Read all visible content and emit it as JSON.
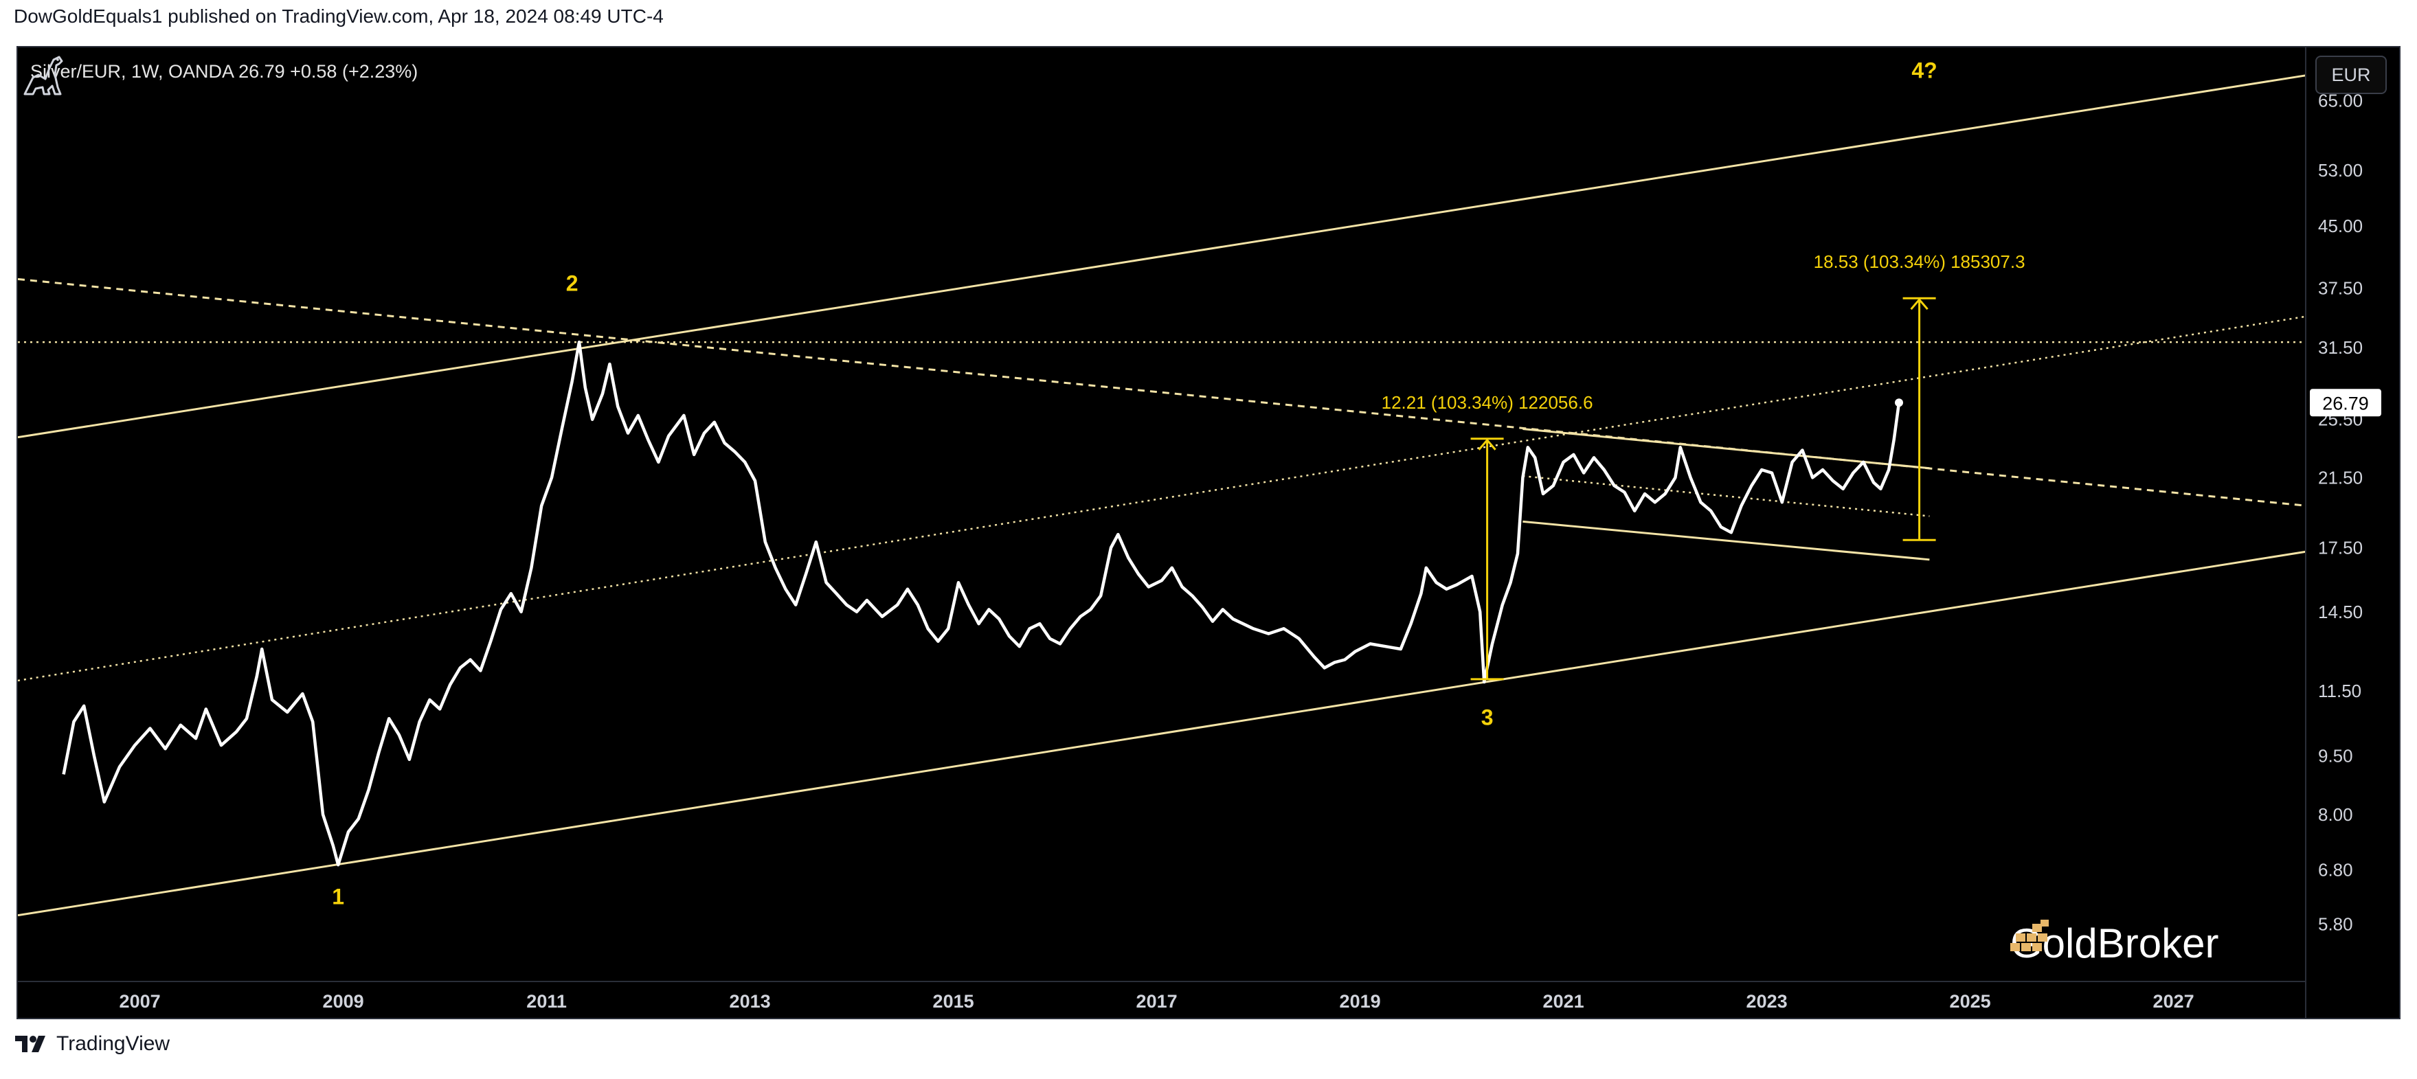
{
  "header": {
    "publisher_line": "DowGoldEquals1 published on TradingView.com, Apr 18, 2024 08:49 UTC-4"
  },
  "symbol": {
    "info": "Silver/EUR, 1W, OANDA  26.79  +0.58 (+2.23%)"
  },
  "currency_button": {
    "label": "EUR"
  },
  "brand": {
    "name": "GoldBroker"
  },
  "footer": {
    "label": "TradingView"
  },
  "colors": {
    "background": "#000000",
    "price_line": "#ffffff",
    "channel_line": "#f3e3a6",
    "annotation_yellow": "#f5d20a",
    "axis_text": "#d1d4dc"
  },
  "icons": [
    "dinosaur-icon",
    "goldbroker-logo-icon",
    "tradingview-logo-icon"
  ],
  "chart_data": {
    "type": "line",
    "title": "",
    "xlabel": "",
    "ylabel": "",
    "y_scale": "log",
    "ylim": [
      4.9,
      76
    ],
    "xlim": [
      2005.8,
      2028.3
    ],
    "grid": false,
    "last_price": 26.79,
    "last_price_label": "26.79",
    "y_ticks": [
      {
        "value": 65.0,
        "label": "65.00"
      },
      {
        "value": 53.0,
        "label": "53.00"
      },
      {
        "value": 45.0,
        "label": "45.00"
      },
      {
        "value": 37.5,
        "label": "37.50"
      },
      {
        "value": 31.5,
        "label": "31.50"
      },
      {
        "value": 25.5,
        "label": "25.50"
      },
      {
        "value": 21.5,
        "label": "21.50"
      },
      {
        "value": 17.5,
        "label": "17.50"
      },
      {
        "value": 14.5,
        "label": "14.50"
      },
      {
        "value": 11.5,
        "label": "11.50"
      },
      {
        "value": 9.5,
        "label": "9.50"
      },
      {
        "value": 8.0,
        "label": "8.00"
      },
      {
        "value": 6.8,
        "label": "6.80"
      },
      {
        "value": 5.8,
        "label": "5.80"
      }
    ],
    "x_ticks": [
      {
        "value": 2007,
        "label": "2007"
      },
      {
        "value": 2009,
        "label": "2009"
      },
      {
        "value": 2011,
        "label": "2011"
      },
      {
        "value": 2013,
        "label": "2013"
      },
      {
        "value": 2015,
        "label": "2015"
      },
      {
        "value": 2017,
        "label": "2017"
      },
      {
        "value": 2019,
        "label": "2019"
      },
      {
        "value": 2021,
        "label": "2021"
      },
      {
        "value": 2023,
        "label": "2023"
      },
      {
        "value": 2025,
        "label": "2025"
      },
      {
        "value": 2027,
        "label": "2027"
      }
    ],
    "series": [
      {
        "points": [
          [
            2006.25,
            9.0
          ],
          [
            2006.35,
            10.5
          ],
          [
            2006.45,
            11.0
          ],
          [
            2006.55,
            9.5
          ],
          [
            2006.65,
            8.3
          ],
          [
            2006.8,
            9.2
          ],
          [
            2006.95,
            9.8
          ],
          [
            2007.1,
            10.3
          ],
          [
            2007.25,
            9.7
          ],
          [
            2007.4,
            10.4
          ],
          [
            2007.55,
            10.0
          ],
          [
            2007.65,
            10.9
          ],
          [
            2007.8,
            9.8
          ],
          [
            2007.95,
            10.2
          ],
          [
            2008.05,
            10.6
          ],
          [
            2008.15,
            12.0
          ],
          [
            2008.2,
            13.0
          ],
          [
            2008.3,
            11.2
          ],
          [
            2008.45,
            10.8
          ],
          [
            2008.6,
            11.4
          ],
          [
            2008.7,
            10.5
          ],
          [
            2008.8,
            8.0
          ],
          [
            2008.9,
            7.3
          ],
          [
            2008.95,
            6.9
          ],
          [
            2009.05,
            7.6
          ],
          [
            2009.15,
            7.9
          ],
          [
            2009.25,
            8.6
          ],
          [
            2009.35,
            9.6
          ],
          [
            2009.45,
            10.6
          ],
          [
            2009.55,
            10.1
          ],
          [
            2009.65,
            9.4
          ],
          [
            2009.75,
            10.5
          ],
          [
            2009.85,
            11.2
          ],
          [
            2009.95,
            10.9
          ],
          [
            2010.05,
            11.7
          ],
          [
            2010.15,
            12.3
          ],
          [
            2010.25,
            12.6
          ],
          [
            2010.35,
            12.2
          ],
          [
            2010.45,
            13.3
          ],
          [
            2010.55,
            14.6
          ],
          [
            2010.65,
            15.3
          ],
          [
            2010.75,
            14.5
          ],
          [
            2010.85,
            16.5
          ],
          [
            2010.95,
            19.8
          ],
          [
            2011.05,
            21.5
          ],
          [
            2011.15,
            24.8
          ],
          [
            2011.25,
            28.5
          ],
          [
            2011.32,
            32.0
          ],
          [
            2011.38,
            28.0
          ],
          [
            2011.45,
            25.5
          ],
          [
            2011.55,
            27.5
          ],
          [
            2011.62,
            30.0
          ],
          [
            2011.7,
            26.5
          ],
          [
            2011.8,
            24.5
          ],
          [
            2011.9,
            25.8
          ],
          [
            2012.0,
            24.0
          ],
          [
            2012.1,
            22.5
          ],
          [
            2012.2,
            24.3
          ],
          [
            2012.35,
            25.8
          ],
          [
            2012.45,
            23.0
          ],
          [
            2012.55,
            24.5
          ],
          [
            2012.65,
            25.3
          ],
          [
            2012.75,
            23.8
          ],
          [
            2012.85,
            23.2
          ],
          [
            2012.95,
            22.5
          ],
          [
            2013.05,
            21.3
          ],
          [
            2013.15,
            17.8
          ],
          [
            2013.25,
            16.5
          ],
          [
            2013.35,
            15.5
          ],
          [
            2013.45,
            14.8
          ],
          [
            2013.55,
            16.2
          ],
          [
            2013.65,
            17.8
          ],
          [
            2013.75,
            15.8
          ],
          [
            2013.85,
            15.3
          ],
          [
            2013.95,
            14.8
          ],
          [
            2014.05,
            14.5
          ],
          [
            2014.15,
            15.0
          ],
          [
            2014.3,
            14.3
          ],
          [
            2014.45,
            14.8
          ],
          [
            2014.55,
            15.5
          ],
          [
            2014.65,
            14.8
          ],
          [
            2014.75,
            13.8
          ],
          [
            2014.85,
            13.3
          ],
          [
            2014.95,
            13.8
          ],
          [
            2015.05,
            15.8
          ],
          [
            2015.15,
            14.8
          ],
          [
            2015.25,
            14.0
          ],
          [
            2015.35,
            14.6
          ],
          [
            2015.45,
            14.2
          ],
          [
            2015.55,
            13.5
          ],
          [
            2015.65,
            13.1
          ],
          [
            2015.75,
            13.8
          ],
          [
            2015.85,
            14.0
          ],
          [
            2015.95,
            13.4
          ],
          [
            2016.05,
            13.2
          ],
          [
            2016.15,
            13.8
          ],
          [
            2016.25,
            14.3
          ],
          [
            2016.35,
            14.6
          ],
          [
            2016.45,
            15.2
          ],
          [
            2016.55,
            17.5
          ],
          [
            2016.62,
            18.2
          ],
          [
            2016.72,
            17.0
          ],
          [
            2016.82,
            16.2
          ],
          [
            2016.92,
            15.6
          ],
          [
            2017.05,
            15.9
          ],
          [
            2017.15,
            16.5
          ],
          [
            2017.25,
            15.6
          ],
          [
            2017.35,
            15.2
          ],
          [
            2017.45,
            14.7
          ],
          [
            2017.55,
            14.1
          ],
          [
            2017.65,
            14.6
          ],
          [
            2017.75,
            14.2
          ],
          [
            2017.85,
            14.0
          ],
          [
            2017.95,
            13.8
          ],
          [
            2018.1,
            13.6
          ],
          [
            2018.25,
            13.8
          ],
          [
            2018.4,
            13.4
          ],
          [
            2018.55,
            12.7
          ],
          [
            2018.65,
            12.3
          ],
          [
            2018.75,
            12.5
          ],
          [
            2018.85,
            12.6
          ],
          [
            2018.95,
            12.9
          ],
          [
            2019.1,
            13.2
          ],
          [
            2019.25,
            13.1
          ],
          [
            2019.4,
            13.0
          ],
          [
            2019.5,
            14.0
          ],
          [
            2019.6,
            15.3
          ],
          [
            2019.65,
            16.5
          ],
          [
            2019.75,
            15.8
          ],
          [
            2019.85,
            15.5
          ],
          [
            2019.95,
            15.7
          ],
          [
            2020.1,
            16.1
          ],
          [
            2020.18,
            14.5
          ],
          [
            2020.22,
            11.8
          ],
          [
            2020.3,
            13.2
          ],
          [
            2020.4,
            14.8
          ],
          [
            2020.48,
            15.8
          ],
          [
            2020.55,
            17.2
          ],
          [
            2020.6,
            21.5
          ],
          [
            2020.65,
            23.5
          ],
          [
            2020.72,
            22.8
          ],
          [
            2020.8,
            20.5
          ],
          [
            2020.9,
            21.0
          ],
          [
            2021.0,
            22.5
          ],
          [
            2021.1,
            23.0
          ],
          [
            2021.2,
            21.8
          ],
          [
            2021.3,
            22.8
          ],
          [
            2021.4,
            22.0
          ],
          [
            2021.5,
            21.0
          ],
          [
            2021.6,
            20.6
          ],
          [
            2021.7,
            19.5
          ],
          [
            2021.8,
            20.5
          ],
          [
            2021.9,
            20.0
          ],
          [
            2022.0,
            20.5
          ],
          [
            2022.1,
            21.5
          ],
          [
            2022.15,
            23.5
          ],
          [
            2022.25,
            21.5
          ],
          [
            2022.35,
            20.0
          ],
          [
            2022.45,
            19.5
          ],
          [
            2022.55,
            18.6
          ],
          [
            2022.65,
            18.3
          ],
          [
            2022.75,
            19.8
          ],
          [
            2022.85,
            21.0
          ],
          [
            2022.95,
            22.0
          ],
          [
            2023.05,
            21.8
          ],
          [
            2023.15,
            20.0
          ],
          [
            2023.25,
            22.5
          ],
          [
            2023.35,
            23.3
          ],
          [
            2023.45,
            21.5
          ],
          [
            2023.55,
            22.0
          ],
          [
            2023.65,
            21.3
          ],
          [
            2023.75,
            20.8
          ],
          [
            2023.85,
            21.8
          ],
          [
            2023.95,
            22.5
          ],
          [
            2024.05,
            21.2
          ],
          [
            2024.12,
            20.8
          ],
          [
            2024.2,
            22.0
          ],
          [
            2024.25,
            24.0
          ],
          [
            2024.3,
            26.79
          ]
        ]
      }
    ],
    "trendlines": [
      {
        "style": "solid",
        "from": [
          2005.8,
          5.95
        ],
        "to": [
          2028.3,
          17.3
        ]
      },
      {
        "style": "solid",
        "from": [
          2005.8,
          24.2
        ],
        "to": [
          2028.3,
          70.0
        ]
      },
      {
        "style": "dotted",
        "from": [
          2005.8,
          11.85
        ],
        "to": [
          2028.3,
          34.5
        ]
      },
      {
        "style": "dashed",
        "from": [
          2005.8,
          38.5
        ],
        "to": [
          2028.3,
          19.8
        ]
      },
      {
        "style": "dotted",
        "from": [
          2005.8,
          32.0
        ],
        "to": [
          2028.3,
          32.0
        ]
      },
      {
        "style": "solid",
        "from": [
          2020.6,
          24.8
        ],
        "to": [
          2024.6,
          22.1
        ]
      },
      {
        "style": "solid",
        "from": [
          2020.6,
          18.9
        ],
        "to": [
          2024.6,
          16.9
        ]
      },
      {
        "style": "dotted",
        "from": [
          2020.6,
          21.6
        ],
        "to": [
          2024.6,
          19.2
        ]
      }
    ],
    "measurements": [
      {
        "label": "12.21 (103.34%) 122056.6",
        "x": 2020.25,
        "from": 11.9,
        "to": 24.1
      },
      {
        "label": "18.53 (103.34%) 185307.3",
        "x": 2024.5,
        "from": 17.9,
        "to": 36.4
      }
    ],
    "wave_labels": [
      {
        "label": "1",
        "x": 2008.95,
        "y": 6.15
      },
      {
        "label": "2",
        "x": 2011.25,
        "y": 37.2
      },
      {
        "label": "3",
        "x": 2020.25,
        "y": 10.4
      },
      {
        "label": "4?",
        "x": 2024.55,
        "y": 69.5
      }
    ]
  }
}
